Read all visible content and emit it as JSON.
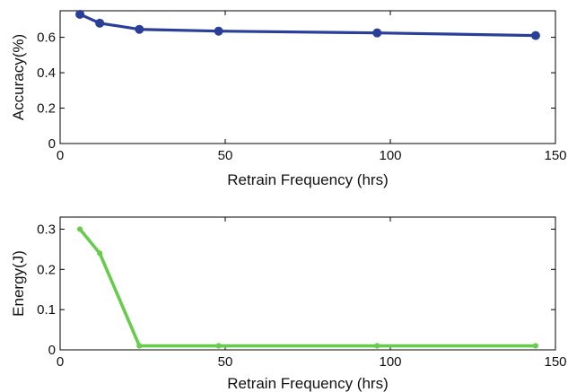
{
  "chart_data": [
    {
      "type": "line",
      "title": "",
      "xlabel": "Retrain Frequency (hrs)",
      "ylabel": "Accuracy(%)",
      "xlim": [
        0,
        150
      ],
      "ylim": [
        0,
        0.75
      ],
      "xticks": [
        0,
        50,
        100,
        150
      ],
      "yticks": [
        0,
        0.2,
        0.4,
        0.6
      ],
      "xtick_labels": [
        "0",
        "50",
        "100",
        "150"
      ],
      "ytick_labels": [
        "0",
        "0.2",
        "0.4",
        "0.6"
      ],
      "grid": false,
      "legend": "none",
      "series": [
        {
          "color": "#2a3f97",
          "marker": "circle",
          "x": [
            6,
            12,
            24,
            48,
            96,
            144
          ],
          "y": [
            0.73,
            0.68,
            0.645,
            0.635,
            0.625,
            0.61
          ]
        }
      ]
    },
    {
      "type": "line",
      "title": "",
      "xlabel": "Retrain Frequency (hrs)",
      "ylabel": "Energy(J)",
      "xlim": [
        0,
        150
      ],
      "ylim": [
        0,
        0.33
      ],
      "xticks": [
        0,
        50,
        100,
        150
      ],
      "yticks": [
        0,
        0.1,
        0.2,
        0.3
      ],
      "xtick_labels": [
        "0",
        "50",
        "100",
        "150"
      ],
      "ytick_labels": [
        "0",
        "0.1",
        "0.2",
        "0.3"
      ],
      "grid": false,
      "legend": "none",
      "series": [
        {
          "color": "#66cc4c",
          "marker": "dot",
          "x": [
            6,
            12,
            24,
            48,
            96,
            144
          ],
          "y": [
            0.3,
            0.24,
            0.01,
            0.01,
            0.01,
            0.01
          ]
        }
      ]
    }
  ]
}
